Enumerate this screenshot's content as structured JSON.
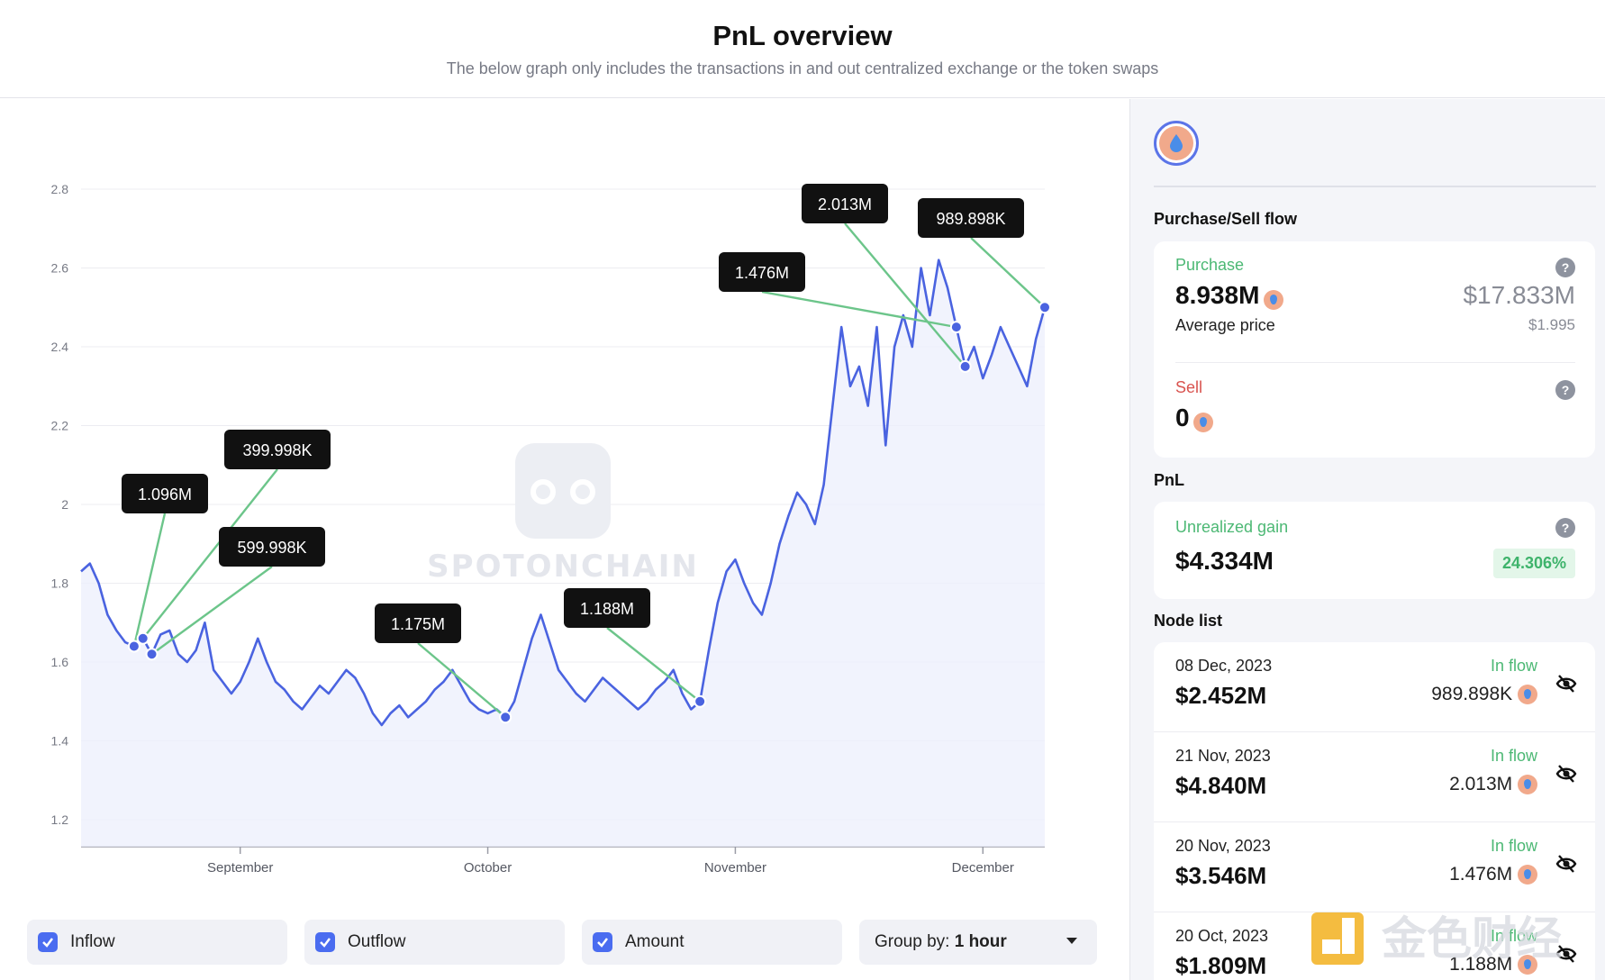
{
  "header": {
    "title": "PnL overview",
    "subtitle": "The below graph only includes the transactions in and out centralized exchange or the token swaps"
  },
  "chart_data": {
    "type": "line",
    "x_ticks": [
      "September",
      "October",
      "November",
      "December"
    ],
    "y_ticks": [
      "2.8",
      "2.6",
      "2.4",
      "2.2",
      "2",
      "1.8",
      "1.6",
      "1.4",
      "1.2"
    ],
    "ylim": [
      1.2,
      2.8
    ],
    "series": [
      {
        "values": [
          1.83,
          1.85,
          1.8,
          1.72,
          1.68,
          1.65,
          1.64,
          1.66,
          1.62,
          1.67,
          1.68,
          1.62,
          1.6,
          1.63,
          1.7,
          1.58,
          1.55,
          1.52,
          1.55,
          1.6,
          1.66,
          1.6,
          1.55,
          1.53,
          1.5,
          1.48,
          1.51,
          1.54,
          1.52,
          1.55,
          1.58,
          1.56,
          1.52,
          1.47,
          1.44,
          1.47,
          1.49,
          1.46,
          1.48,
          1.5,
          1.53,
          1.55,
          1.58,
          1.54,
          1.5,
          1.48,
          1.47,
          1.48,
          1.46,
          1.5,
          1.58,
          1.66,
          1.72,
          1.65,
          1.58,
          1.55,
          1.52,
          1.5,
          1.53,
          1.56,
          1.54,
          1.52,
          1.5,
          1.48,
          1.5,
          1.53,
          1.55,
          1.58,
          1.52,
          1.48,
          1.5,
          1.63,
          1.75,
          1.83,
          1.86,
          1.8,
          1.75,
          1.72,
          1.8,
          1.9,
          1.97,
          2.03,
          2.0,
          1.95,
          2.05,
          2.25,
          2.45,
          2.3,
          2.35,
          2.25,
          2.45,
          2.15,
          2.4,
          2.48,
          2.4,
          2.6,
          2.48,
          2.62,
          2.55,
          2.45,
          2.35,
          2.4,
          2.32,
          2.38,
          2.45,
          2.4,
          2.35,
          2.3,
          2.42,
          2.5
        ]
      }
    ],
    "nodes": [
      {
        "label": "1.096M",
        "index": 6
      },
      {
        "label": "399.998K",
        "index": 7
      },
      {
        "label": "599.998K",
        "index": 8
      },
      {
        "label": "1.175M",
        "index": 48
      },
      {
        "label": "1.188M",
        "index": 70
      },
      {
        "label": "1.476M",
        "index": 99
      },
      {
        "label": "2.013M",
        "index": 100
      },
      {
        "label": "989.898K",
        "index": 109
      }
    ],
    "watermark": "SPOTONCHAIN",
    "colors": {
      "line": "#4a63e0",
      "area": "#eef0fc",
      "connector": "#6cc58a",
      "tooltip": "#111111"
    }
  },
  "controls": {
    "inflow": "Inflow",
    "outflow": "Outflow",
    "amount": "Amount",
    "group_prefix": "Group by:",
    "group_value": "1 hour"
  },
  "sidebar": {
    "flow_title": "Purchase/Sell flow",
    "purchase": {
      "label": "Purchase",
      "amount": "8.938M",
      "usd": "$17.833M",
      "avg_label": "Average price",
      "avg_value": "$1.995"
    },
    "sell": {
      "label": "Sell",
      "amount": "0"
    },
    "pnl_title": "PnL",
    "pnl": {
      "label": "Unrealized gain",
      "value": "$4.334M",
      "percent": "24.306%"
    },
    "node_title": "Node list",
    "nodes": [
      {
        "date": "08 Dec, 2023",
        "value": "$2.452M",
        "flow": "In flow",
        "amount": "989.898K"
      },
      {
        "date": "21 Nov, 2023",
        "value": "$4.840M",
        "flow": "In flow",
        "amount": "2.013M"
      },
      {
        "date": "20 Nov, 2023",
        "value": "$3.546M",
        "flow": "In flow",
        "amount": "1.476M"
      },
      {
        "date": "20 Oct, 2023",
        "value": "$1.809M",
        "flow": "In flow",
        "amount": "1.188M"
      }
    ]
  },
  "watermark_brand": "金色财经"
}
